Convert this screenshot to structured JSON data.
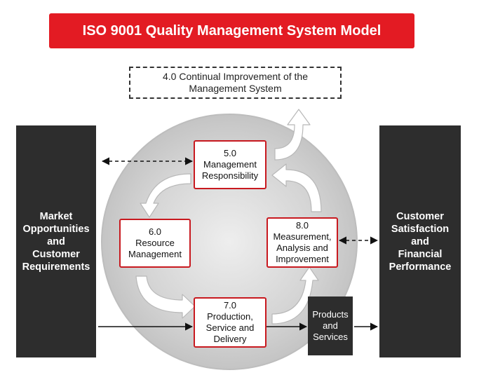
{
  "title": "ISO 9001 Quality Management System Model",
  "continual_improvement": "4.0 Continual Improvement of the Management System",
  "left_panel": "Market\nOpportunities\nand\nCustomer\nRequirements",
  "right_panel": "Customer\nSatisfaction\nand\nFinancial\nPerformance",
  "processes": {
    "management": "5.0\nManagement\nResponsibility",
    "resource": "6.0\nResource\nManagement",
    "production": "7.0\nProduction,\nService and\nDelivery",
    "measurement": "8.0\nMeasurement,\nAnalysis and\nImprovement"
  },
  "products": "Products\nand\nServices",
  "colors": {
    "accent": "#e31b23",
    "box_border": "#c8191f",
    "panel": "#2d2d2d",
    "circle": "#c9c9c9"
  }
}
